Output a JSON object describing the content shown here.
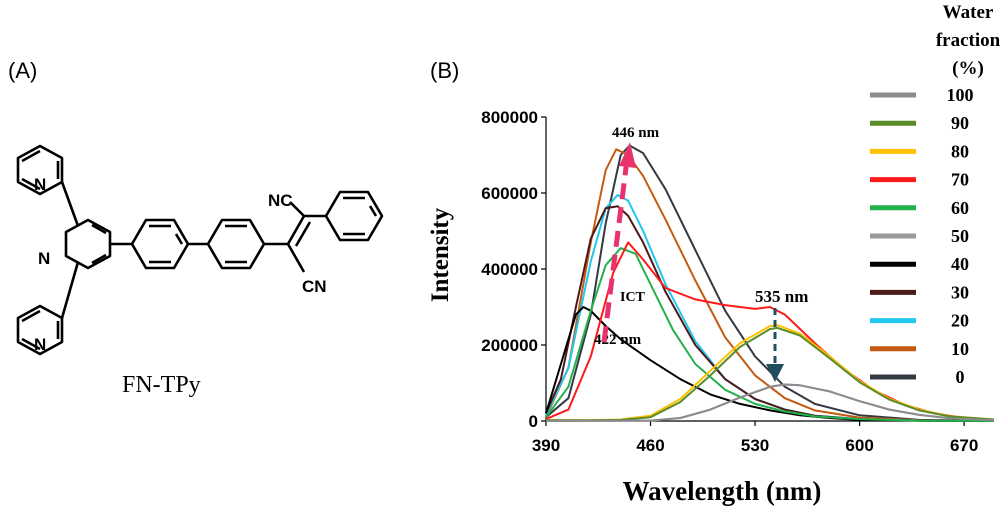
{
  "panel_a": {
    "label": "(A)",
    "compound_name": "FN-TPy",
    "atom_labels": {
      "n1": "N",
      "n2": "N",
      "n3": "N",
      "nc": "NC",
      "cn": "CN"
    }
  },
  "panel_b": {
    "label": "(B)"
  },
  "legend": {
    "title_line1": "Water",
    "title_line2": "fraction",
    "title_line3": "(%)"
  },
  "annotations": {
    "peak_446": "446 nm",
    "peak_535": "535 nm",
    "peak_422": "422 nm",
    "ict": "ICT"
  },
  "colors": {
    "axis": "#000000",
    "arrow_up": "#e8336d",
    "arrow_down": "#1f4e5f"
  },
  "chart_data": {
    "type": "line",
    "xlabel": "Wavelength (nm)",
    "ylabel": "Intensity",
    "xlim": [
      390,
      690
    ],
    "ylim": [
      0,
      800000
    ],
    "xticks": [
      390,
      460,
      530,
      600,
      670
    ],
    "yticks": [
      0,
      200000,
      400000,
      600000,
      800000
    ],
    "grid": false,
    "legend_position": "right",
    "series": [
      {
        "name": "100",
        "color": "#8c8c8c",
        "points": [
          [
            390,
            0
          ],
          [
            460,
            1000
          ],
          [
            480,
            8000
          ],
          [
            500,
            30000
          ],
          [
            520,
            62000
          ],
          [
            540,
            90000
          ],
          [
            550,
            96000
          ],
          [
            560,
            94000
          ],
          [
            580,
            78000
          ],
          [
            600,
            52000
          ],
          [
            620,
            30000
          ],
          [
            640,
            16000
          ],
          [
            660,
            7000
          ],
          [
            690,
            2000
          ]
        ]
      },
      {
        "name": "90",
        "color": "#5b8c2a",
        "points": [
          [
            390,
            2000
          ],
          [
            420,
            2000
          ],
          [
            440,
            3000
          ],
          [
            460,
            10000
          ],
          [
            480,
            50000
          ],
          [
            500,
            120000
          ],
          [
            520,
            195000
          ],
          [
            540,
            242000
          ],
          [
            545,
            245000
          ],
          [
            560,
            225000
          ],
          [
            580,
            165000
          ],
          [
            600,
            102000
          ],
          [
            620,
            56000
          ],
          [
            640,
            28000
          ],
          [
            660,
            12000
          ],
          [
            690,
            4000
          ]
        ]
      },
      {
        "name": "80",
        "color": "#ffc000",
        "points": [
          [
            390,
            2000
          ],
          [
            420,
            2000
          ],
          [
            440,
            4000
          ],
          [
            460,
            14000
          ],
          [
            480,
            58000
          ],
          [
            500,
            132000
          ],
          [
            520,
            205000
          ],
          [
            540,
            250000
          ],
          [
            545,
            252000
          ],
          [
            560,
            230000
          ],
          [
            580,
            170000
          ],
          [
            600,
            105000
          ],
          [
            620,
            58000
          ],
          [
            640,
            30000
          ],
          [
            660,
            13000
          ],
          [
            690,
            4000
          ]
        ]
      },
      {
        "name": "70",
        "color": "#ff1a1a",
        "points": [
          [
            390,
            5000
          ],
          [
            405,
            30000
          ],
          [
            420,
            170000
          ],
          [
            435,
            390000
          ],
          [
            445,
            470000
          ],
          [
            455,
            425000
          ],
          [
            470,
            350000
          ],
          [
            490,
            320000
          ],
          [
            510,
            305000
          ],
          [
            530,
            295000
          ],
          [
            540,
            300000
          ],
          [
            550,
            280000
          ],
          [
            570,
            205000
          ],
          [
            590,
            135000
          ],
          [
            610,
            80000
          ],
          [
            630,
            43000
          ],
          [
            650,
            20000
          ],
          [
            670,
            8000
          ],
          [
            690,
            3000
          ]
        ]
      },
      {
        "name": "60",
        "color": "#22b24c",
        "points": [
          [
            390,
            10000
          ],
          [
            405,
            90000
          ],
          [
            420,
            290000
          ],
          [
            430,
            410000
          ],
          [
            440,
            455000
          ],
          [
            450,
            440000
          ],
          [
            460,
            360000
          ],
          [
            475,
            240000
          ],
          [
            490,
            150000
          ],
          [
            510,
            82000
          ],
          [
            530,
            45000
          ],
          [
            550,
            25000
          ],
          [
            570,
            12000
          ],
          [
            600,
            5000
          ],
          [
            640,
            1000
          ],
          [
            690,
            0
          ]
        ]
      },
      {
        "name": "50",
        "color": "#9b9b9b",
        "points": [
          [
            390,
            0
          ],
          [
            460,
            1000
          ],
          [
            480,
            8000
          ],
          [
            500,
            30000
          ],
          [
            520,
            62000
          ],
          [
            540,
            90000
          ],
          [
            550,
            96000
          ],
          [
            560,
            94000
          ],
          [
            580,
            78000
          ],
          [
            600,
            52000
          ],
          [
            620,
            30000
          ],
          [
            640,
            16000
          ],
          [
            660,
            7000
          ],
          [
            690,
            2000
          ]
        ]
      },
      {
        "name": "40",
        "color": "#000000",
        "points": [
          [
            390,
            20000
          ],
          [
            400,
            150000
          ],
          [
            410,
            280000
          ],
          [
            415,
            300000
          ],
          [
            420,
            290000
          ],
          [
            430,
            250000
          ],
          [
            440,
            215000
          ],
          [
            460,
            160000
          ],
          [
            480,
            110000
          ],
          [
            500,
            70000
          ],
          [
            520,
            45000
          ],
          [
            540,
            28000
          ],
          [
            560,
            15000
          ],
          [
            580,
            8000
          ],
          [
            600,
            3000
          ],
          [
            640,
            1000
          ],
          [
            690,
            0
          ]
        ]
      },
      {
        "name": "30",
        "color": "#4d1a1a",
        "points": [
          [
            390,
            20000
          ],
          [
            400,
            110000
          ],
          [
            410,
            300000
          ],
          [
            420,
            480000
          ],
          [
            430,
            560000
          ],
          [
            438,
            565000
          ],
          [
            445,
            540000
          ],
          [
            455,
            470000
          ],
          [
            470,
            340000
          ],
          [
            490,
            200000
          ],
          [
            510,
            110000
          ],
          [
            530,
            58000
          ],
          [
            550,
            30000
          ],
          [
            570,
            14000
          ],
          [
            600,
            5000
          ],
          [
            640,
            1000
          ],
          [
            690,
            0
          ]
        ]
      },
      {
        "name": "20",
        "color": "#22c7f0",
        "points": [
          [
            390,
            15000
          ],
          [
            405,
            140000
          ],
          [
            420,
            420000
          ],
          [
            430,
            560000
          ],
          [
            438,
            595000
          ],
          [
            445,
            580000
          ],
          [
            455,
            500000
          ],
          [
            470,
            360000
          ],
          [
            490,
            210000
          ],
          [
            510,
            110000
          ],
          [
            530,
            58000
          ],
          [
            550,
            30000
          ],
          [
            570,
            14000
          ],
          [
            600,
            5000
          ],
          [
            640,
            1000
          ],
          [
            690,
            0
          ]
        ]
      },
      {
        "name": "10",
        "color": "#c55a11",
        "points": [
          [
            390,
            10000
          ],
          [
            405,
            140000
          ],
          [
            420,
            470000
          ],
          [
            430,
            660000
          ],
          [
            437,
            715000
          ],
          [
            445,
            700000
          ],
          [
            455,
            645000
          ],
          [
            470,
            530000
          ],
          [
            490,
            370000
          ],
          [
            510,
            220000
          ],
          [
            530,
            120000
          ],
          [
            550,
            60000
          ],
          [
            570,
            28000
          ],
          [
            600,
            9000
          ],
          [
            640,
            2000
          ],
          [
            690,
            0
          ]
        ]
      },
      {
        "name": "0",
        "color": "#333a44",
        "points": [
          [
            390,
            10000
          ],
          [
            405,
            60000
          ],
          [
            420,
            280000
          ],
          [
            430,
            520000
          ],
          [
            440,
            700000
          ],
          [
            446,
            725000
          ],
          [
            455,
            705000
          ],
          [
            470,
            610000
          ],
          [
            490,
            450000
          ],
          [
            510,
            290000
          ],
          [
            530,
            170000
          ],
          [
            550,
            90000
          ],
          [
            570,
            45000
          ],
          [
            600,
            15000
          ],
          [
            640,
            3000
          ],
          [
            690,
            0
          ]
        ]
      }
    ]
  }
}
